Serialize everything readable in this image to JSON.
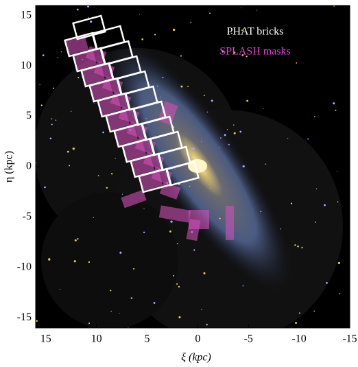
{
  "chart_data": {
    "type": "image",
    "xlabel": "ξ (kpc)",
    "ylabel": "η (kpc)",
    "xlim": [
      16,
      -15
    ],
    "ylim": [
      -16,
      16
    ],
    "xticks": [
      15,
      10,
      5,
      0,
      -5,
      -10,
      -15
    ],
    "yticks": [
      -15,
      -10,
      -5,
      0,
      5,
      10,
      15
    ],
    "legend": [
      {
        "name": "PHAT bricks",
        "color": "#ffffff"
      },
      {
        "name": "SPLASH masks",
        "color": "#e040d0"
      }
    ],
    "legend_position": "upper right"
  }
}
